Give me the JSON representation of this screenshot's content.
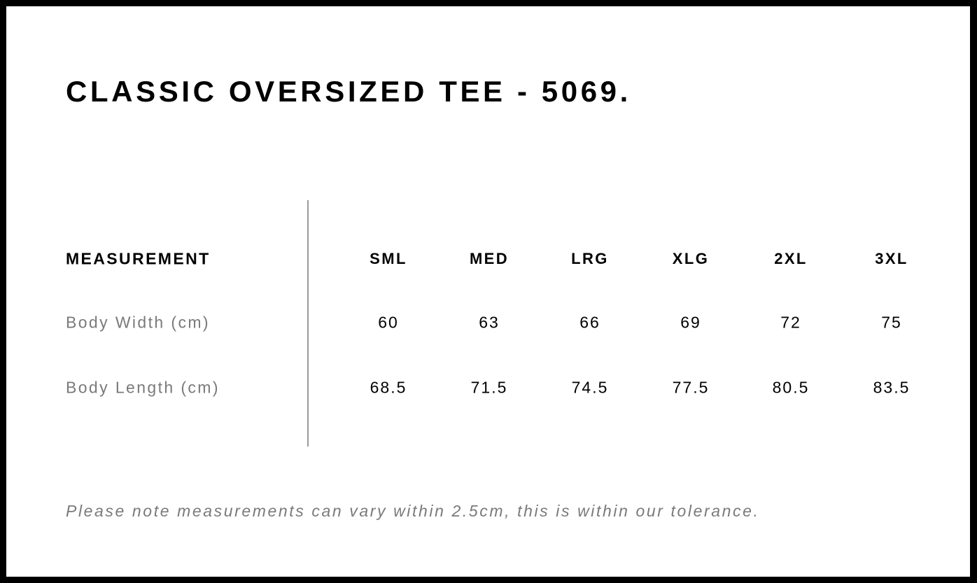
{
  "title": "CLASSIC OVERSIZED TEE - 5069.",
  "table": {
    "header_label": "MEASUREMENT",
    "sizes": [
      "SML",
      "MED",
      "LRG",
      "XLG",
      "2XL",
      "3XL"
    ],
    "rows": [
      {
        "label": "Body Width (cm)",
        "values": [
          "60",
          "63",
          "66",
          "69",
          "72",
          "75"
        ]
      },
      {
        "label": "Body Length (cm)",
        "values": [
          "68.5",
          "71.5",
          "74.5",
          "77.5",
          "80.5",
          "83.5"
        ]
      }
    ]
  },
  "note": "Please note measurements can vary within 2.5cm, this is within our tolerance.",
  "colors": {
    "border": "#000000",
    "label_gray": "#7a7a7a",
    "divider": "#9a9a9a"
  }
}
